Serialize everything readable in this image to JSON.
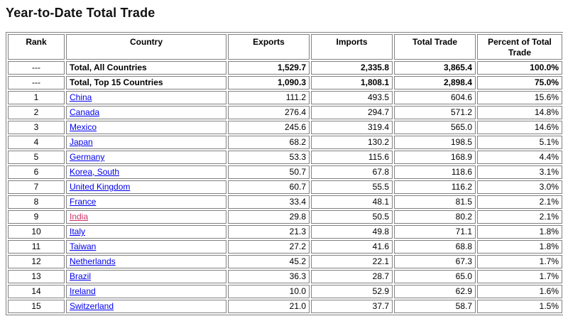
{
  "page": {
    "title": "Year-to-Date Total Trade"
  },
  "colors": {
    "page_background": "#ffffff",
    "text": "#000000",
    "link": "#0000ee",
    "visited_link": "#cc3366",
    "table_border": "#808080"
  },
  "table": {
    "columns": [
      "Rank",
      "Country",
      "Exports",
      "Imports",
      "Total Trade",
      "Percent of Total Trade"
    ],
    "total_rows": [
      {
        "rank": "---",
        "country": "Total, All Countries",
        "exports": "1,529.7",
        "imports": "2,335.8",
        "total_trade": "3,865.4",
        "percent": "100.0%"
      },
      {
        "rank": "---",
        "country": "Total, Top 15 Countries",
        "exports": "1,090.3",
        "imports": "1,808.1",
        "total_trade": "2,898.4",
        "percent": "75.0%"
      }
    ],
    "rows": [
      {
        "rank": "1",
        "country": "China",
        "exports": "111.2",
        "imports": "493.5",
        "total_trade": "604.6",
        "percent": "15.6%"
      },
      {
        "rank": "2",
        "country": "Canada",
        "exports": "276.4",
        "imports": "294.7",
        "total_trade": "571.2",
        "percent": "14.8%"
      },
      {
        "rank": "3",
        "country": "Mexico",
        "exports": "245.6",
        "imports": "319.4",
        "total_trade": "565.0",
        "percent": "14.6%"
      },
      {
        "rank": "4",
        "country": "Japan",
        "exports": "68.2",
        "imports": "130.2",
        "total_trade": "198.5",
        "percent": "5.1%"
      },
      {
        "rank": "5",
        "country": "Germany",
        "exports": "53.3",
        "imports": "115.6",
        "total_trade": "168.9",
        "percent": "4.4%"
      },
      {
        "rank": "6",
        "country": "Korea, South",
        "exports": "50.7",
        "imports": "67.8",
        "total_trade": "118.6",
        "percent": "3.1%"
      },
      {
        "rank": "7",
        "country": "United Kingdom",
        "exports": "60.7",
        "imports": "55.5",
        "total_trade": "116.2",
        "percent": "3.0%"
      },
      {
        "rank": "8",
        "country": "France",
        "exports": "33.4",
        "imports": "48.1",
        "total_trade": "81.5",
        "percent": "2.1%"
      },
      {
        "rank": "9",
        "country": "India",
        "exports": "29.8",
        "imports": "50.5",
        "total_trade": "80.2",
        "percent": "2.1%",
        "visited": true
      },
      {
        "rank": "10",
        "country": "Italy",
        "exports": "21.3",
        "imports": "49.8",
        "total_trade": "71.1",
        "percent": "1.8%"
      },
      {
        "rank": "11",
        "country": "Taiwan",
        "exports": "27.2",
        "imports": "41.6",
        "total_trade": "68.8",
        "percent": "1.8%"
      },
      {
        "rank": "12",
        "country": "Netherlands",
        "exports": "45.2",
        "imports": "22.1",
        "total_trade": "67.3",
        "percent": "1.7%"
      },
      {
        "rank": "13",
        "country": "Brazil",
        "exports": "36.3",
        "imports": "28.7",
        "total_trade": "65.0",
        "percent": "1.7%"
      },
      {
        "rank": "14",
        "country": "Ireland",
        "exports": "10.0",
        "imports": "52.9",
        "total_trade": "62.9",
        "percent": "1.6%"
      },
      {
        "rank": "15",
        "country": "Switzerland",
        "exports": "21.0",
        "imports": "37.7",
        "total_trade": "58.7",
        "percent": "1.5%"
      }
    ]
  }
}
